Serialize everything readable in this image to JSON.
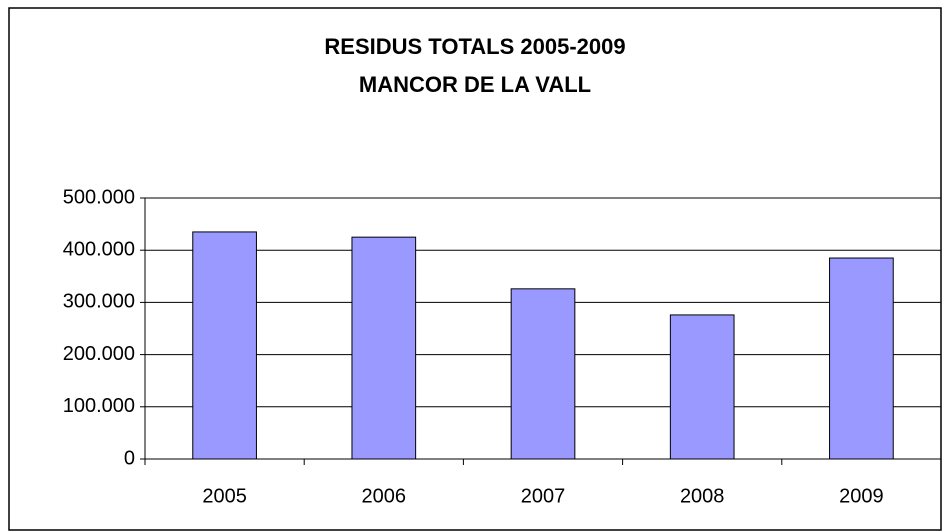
{
  "chart_data": {
    "type": "bar",
    "title": "RESIDUS TOTALS 2005-2009",
    "subtitle": "MANCOR DE LA VALL",
    "categories": [
      "2005",
      "2006",
      "2007",
      "2008",
      "2009"
    ],
    "values": [
      435000,
      425000,
      326000,
      276000,
      385000
    ],
    "color": "#9999ff",
    "ylim": [
      0,
      500000
    ],
    "yticks": [
      0,
      {
        "value": 100000,
        "label": "100.000"
      },
      {
        "value": 200000,
        "label": "200.000"
      },
      {
        "value": 300000,
        "label": "300.000"
      },
      {
        "value": 400000,
        "label": "400.000"
      },
      {
        "value": 500000,
        "label": "500.000"
      }
    ],
    "grid": true
  }
}
